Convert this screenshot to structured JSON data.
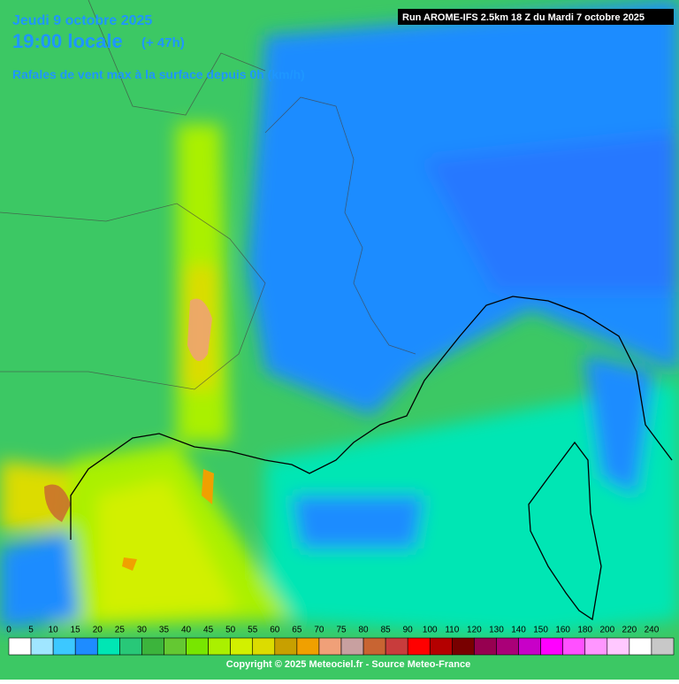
{
  "header": {
    "date": "Jeudi 9 octobre 2025",
    "time": "19:00 locale",
    "lead": "(+ 47h)",
    "parameter": "Rafales de vent max à la surface depuis 0h (km/h)",
    "run": "Run AROME-IFS 2.5km 18 Z du Mardi 7 octobre 2025"
  },
  "legend": {
    "values": [
      0,
      5,
      10,
      15,
      20,
      25,
      30,
      35,
      40,
      45,
      50,
      55,
      60,
      65,
      70,
      75,
      80,
      85,
      90,
      100,
      110,
      120,
      130,
      140,
      150,
      160,
      180,
      200,
      220,
      240
    ],
    "colors": [
      "#ffffff",
      "#a0e6ff",
      "#3cc8ff",
      "#1e8cff",
      "#00e6b4",
      "#28c878",
      "#3cb43c",
      "#64c832",
      "#78e600",
      "#aaf000",
      "#d2f000",
      "#dcdc00",
      "#c8a000",
      "#f0a000",
      "#f0a078",
      "#c8a0a0",
      "#c86432",
      "#c83c3c",
      "#ff0000",
      "#b40000",
      "#780000",
      "#960050",
      "#aa0078",
      "#c800c8",
      "#ff00ff",
      "#ff50ff",
      "#ff96ff",
      "#ffc8ff",
      "#ffffff",
      "#c8c8c8"
    ]
  },
  "footer": {
    "copyright": "Copyright © 2025 Meteociel.fr - Source Meteo-France"
  }
}
